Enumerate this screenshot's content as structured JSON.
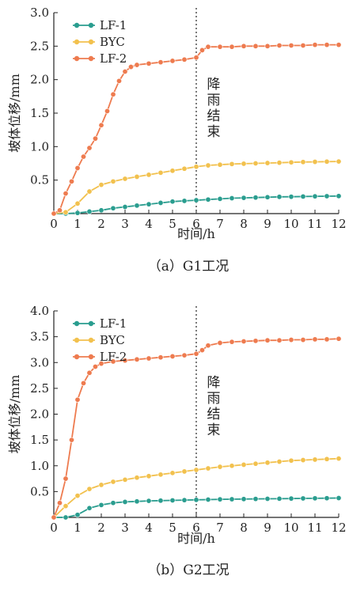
{
  "chart_data": [
    {
      "type": "line",
      "caption": "（a）G1工况",
      "xlabel": "时间/h",
      "ylabel": "坡体位移/mm",
      "xlim": [
        0,
        12
      ],
      "ylim": [
        0,
        3.0
      ],
      "xticks": [
        "0",
        "1",
        "2",
        "3",
        "4",
        "5",
        "6",
        "7",
        "8",
        "9",
        "10",
        "11",
        "12"
      ],
      "yticks": [
        "0.5",
        "1.0",
        "1.5",
        "2.0",
        "2.5",
        "3.0"
      ],
      "annotation": {
        "x": 6,
        "text": "降雨结束"
      },
      "legend": "top-left",
      "series": [
        {
          "name": "LF-1",
          "color": "#2a9d8f",
          "points": [
            [
              0,
              0
            ],
            [
              0.5,
              0.0
            ],
            [
              1,
              0.01
            ],
            [
              1.5,
              0.03
            ],
            [
              2,
              0.05
            ],
            [
              2.5,
              0.08
            ],
            [
              3,
              0.1
            ],
            [
              3.5,
              0.12
            ],
            [
              4,
              0.14
            ],
            [
              4.5,
              0.16
            ],
            [
              5,
              0.18
            ],
            [
              5.5,
              0.19
            ],
            [
              6,
              0.2
            ],
            [
              6.5,
              0.21
            ],
            [
              7,
              0.22
            ],
            [
              7.5,
              0.23
            ],
            [
              8,
              0.235
            ],
            [
              8.5,
              0.24
            ],
            [
              9,
              0.245
            ],
            [
              9.5,
              0.25
            ],
            [
              10,
              0.252
            ],
            [
              10.5,
              0.255
            ],
            [
              11,
              0.258
            ],
            [
              11.5,
              0.26
            ],
            [
              12,
              0.262
            ]
          ]
        },
        {
          "name": "BYC",
          "color": "#f2c14e",
          "points": [
            [
              0,
              0
            ],
            [
              0.5,
              0.02
            ],
            [
              1,
              0.15
            ],
            [
              1.5,
              0.33
            ],
            [
              2,
              0.43
            ],
            [
              2.5,
              0.48
            ],
            [
              3,
              0.52
            ],
            [
              3.5,
              0.55
            ],
            [
              4,
              0.58
            ],
            [
              4.5,
              0.61
            ],
            [
              5,
              0.64
            ],
            [
              5.5,
              0.67
            ],
            [
              6,
              0.7
            ],
            [
              6.5,
              0.72
            ],
            [
              7,
              0.73
            ],
            [
              7.5,
              0.74
            ],
            [
              8,
              0.745
            ],
            [
              8.5,
              0.75
            ],
            [
              9,
              0.755
            ],
            [
              9.5,
              0.76
            ],
            [
              10,
              0.765
            ],
            [
              10.5,
              0.77
            ],
            [
              11,
              0.773
            ],
            [
              11.5,
              0.776
            ],
            [
              12,
              0.778
            ]
          ]
        },
        {
          "name": "LF-2",
          "color": "#ee7b4f",
          "points": [
            [
              0,
              0
            ],
            [
              0.25,
              0.05
            ],
            [
              0.5,
              0.3
            ],
            [
              0.75,
              0.48
            ],
            [
              1,
              0.68
            ],
            [
              1.25,
              0.85
            ],
            [
              1.5,
              0.98
            ],
            [
              1.75,
              1.12
            ],
            [
              2,
              1.32
            ],
            [
              2.25,
              1.53
            ],
            [
              2.5,
              1.78
            ],
            [
              2.75,
              1.98
            ],
            [
              3,
              2.12
            ],
            [
              3.25,
              2.19
            ],
            [
              3.5,
              2.22
            ],
            [
              4,
              2.24
            ],
            [
              4.5,
              2.26
            ],
            [
              5,
              2.28
            ],
            [
              5.5,
              2.3
            ],
            [
              6,
              2.33
            ],
            [
              6.25,
              2.44
            ],
            [
              6.5,
              2.49
            ],
            [
              7,
              2.49
            ],
            [
              7.5,
              2.49
            ],
            [
              8,
              2.5
            ],
            [
              8.5,
              2.5
            ],
            [
              9,
              2.5
            ],
            [
              9.5,
              2.51
            ],
            [
              10,
              2.51
            ],
            [
              10.5,
              2.51
            ],
            [
              11,
              2.52
            ],
            [
              11.5,
              2.52
            ],
            [
              12,
              2.52
            ]
          ]
        }
      ]
    },
    {
      "type": "line",
      "caption": "（b）G2工况",
      "xlabel": "时间/h",
      "ylabel": "坡体位移/mm",
      "xlim": [
        0,
        12
      ],
      "ylim": [
        0,
        4.0
      ],
      "xticks": [
        "0",
        "1",
        "2",
        "3",
        "4",
        "5",
        "6",
        "7",
        "8",
        "9",
        "10",
        "11",
        "12"
      ],
      "yticks": [
        "0.5",
        "1.0",
        "1.5",
        "2.0",
        "2.5",
        "3.0",
        "3.5",
        "4.0"
      ],
      "annotation": {
        "x": 6,
        "text": "降雨结束"
      },
      "legend": "top-left",
      "series": [
        {
          "name": "LF-1",
          "color": "#2a9d8f",
          "points": [
            [
              0,
              0
            ],
            [
              0.5,
              0.0
            ],
            [
              1,
              0.05
            ],
            [
              1.5,
              0.18
            ],
            [
              2,
              0.24
            ],
            [
              2.5,
              0.28
            ],
            [
              3,
              0.3
            ],
            [
              3.5,
              0.31
            ],
            [
              4,
              0.32
            ],
            [
              4.5,
              0.325
            ],
            [
              5,
              0.33
            ],
            [
              5.5,
              0.335
            ],
            [
              6,
              0.34
            ],
            [
              6.5,
              0.345
            ],
            [
              7,
              0.35
            ],
            [
              7.5,
              0.352
            ],
            [
              8,
              0.355
            ],
            [
              8.5,
              0.358
            ],
            [
              9,
              0.36
            ],
            [
              9.5,
              0.362
            ],
            [
              10,
              0.365
            ],
            [
              10.5,
              0.368
            ],
            [
              11,
              0.37
            ],
            [
              11.5,
              0.372
            ],
            [
              12,
              0.375
            ]
          ]
        },
        {
          "name": "BYC",
          "color": "#f2c14e",
          "points": [
            [
              0,
              0
            ],
            [
              0.5,
              0.22
            ],
            [
              1,
              0.42
            ],
            [
              1.5,
              0.55
            ],
            [
              2,
              0.63
            ],
            [
              2.5,
              0.69
            ],
            [
              3,
              0.73
            ],
            [
              3.5,
              0.77
            ],
            [
              4,
              0.8
            ],
            [
              4.5,
              0.83
            ],
            [
              5,
              0.86
            ],
            [
              5.5,
              0.89
            ],
            [
              6,
              0.92
            ],
            [
              6.5,
              0.95
            ],
            [
              7,
              0.98
            ],
            [
              7.5,
              1.0
            ],
            [
              8,
              1.02
            ],
            [
              8.5,
              1.04
            ],
            [
              9,
              1.06
            ],
            [
              9.5,
              1.08
            ],
            [
              10,
              1.1
            ],
            [
              10.5,
              1.11
            ],
            [
              11,
              1.12
            ],
            [
              11.5,
              1.13
            ],
            [
              12,
              1.14
            ]
          ]
        },
        {
          "name": "LF-2",
          "color": "#ee7b4f",
          "points": [
            [
              0,
              0
            ],
            [
              0.25,
              0.28
            ],
            [
              0.5,
              0.75
            ],
            [
              0.75,
              1.5
            ],
            [
              1,
              2.28
            ],
            [
              1.25,
              2.6
            ],
            [
              1.5,
              2.8
            ],
            [
              1.75,
              2.92
            ],
            [
              2,
              2.98
            ],
            [
              2.5,
              3.02
            ],
            [
              3,
              3.04
            ],
            [
              3.5,
              3.06
            ],
            [
              4,
              3.08
            ],
            [
              4.5,
              3.1
            ],
            [
              5,
              3.12
            ],
            [
              5.5,
              3.14
            ],
            [
              6,
              3.17
            ],
            [
              6.25,
              3.24
            ],
            [
              6.5,
              3.33
            ],
            [
              7,
              3.38
            ],
            [
              7.5,
              3.4
            ],
            [
              8,
              3.41
            ],
            [
              8.5,
              3.42
            ],
            [
              9,
              3.43
            ],
            [
              9.5,
              3.43
            ],
            [
              10,
              3.44
            ],
            [
              10.5,
              3.44
            ],
            [
              11,
              3.45
            ],
            [
              11.5,
              3.45
            ],
            [
              12,
              3.46
            ]
          ]
        }
      ]
    }
  ]
}
